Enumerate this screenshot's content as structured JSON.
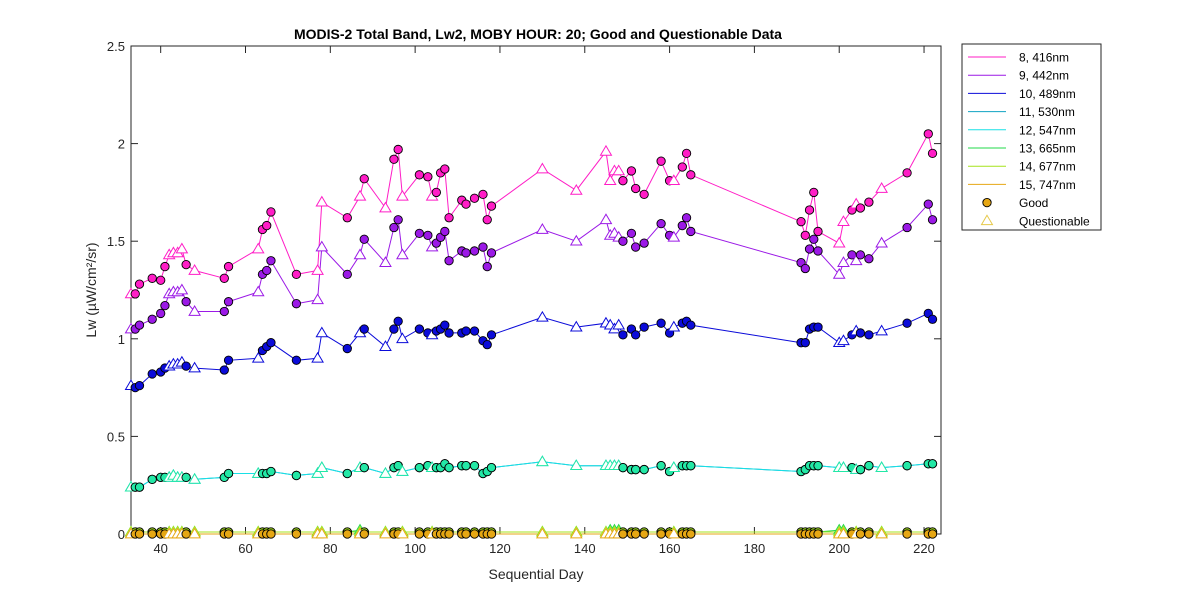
{
  "chart_data": {
    "type": "line",
    "title": "MODIS-2 Total Band,  Lw2, MOBY HOUR: 20;  Good and Questionable Data",
    "xlabel": "Sequential Day",
    "ylabel": "Lw (µW/cm²/sr)",
    "xlim": [
      33,
      224
    ],
    "ylim": [
      0,
      2.5
    ],
    "xticks": [
      40,
      60,
      80,
      100,
      120,
      140,
      160,
      180,
      200,
      220
    ],
    "yticks": [
      0,
      0.5,
      1,
      1.5,
      2,
      2.5
    ],
    "xtick_labels": [
      "40",
      "60",
      "80",
      "100",
      "120",
      "140",
      "160",
      "180",
      "200",
      "220"
    ],
    "ytick_labels": [
      "0",
      "0.5",
      "1",
      "1.5",
      "2",
      "2.5"
    ],
    "x": [
      33,
      34,
      35,
      38,
      40,
      41,
      42,
      43,
      44,
      45,
      46,
      48,
      55,
      56,
      63,
      64,
      65,
      66,
      72,
      77,
      78,
      84,
      87,
      88,
      93,
      95,
      96,
      97,
      101,
      103,
      104,
      105,
      106,
      107,
      108,
      111,
      112,
      114,
      116,
      117,
      118,
      130,
      138,
      145,
      146,
      147,
      148,
      149,
      151,
      152,
      154,
      158,
      160,
      161,
      163,
      164,
      165,
      191,
      192,
      193,
      194,
      195,
      200,
      201,
      203,
      204,
      205,
      207,
      210,
      216,
      221,
      222
    ],
    "good": [
      false,
      true,
      true,
      true,
      true,
      true,
      false,
      false,
      false,
      false,
      true,
      false,
      true,
      true,
      false,
      true,
      true,
      true,
      true,
      false,
      false,
      true,
      false,
      true,
      false,
      true,
      true,
      false,
      true,
      true,
      false,
      true,
      true,
      true,
      true,
      true,
      true,
      true,
      true,
      true,
      true,
      false,
      false,
      false,
      false,
      false,
      false,
      true,
      true,
      true,
      true,
      true,
      true,
      false,
      true,
      true,
      true,
      true,
      true,
      true,
      true,
      true,
      false,
      false,
      true,
      false,
      true,
      true,
      false,
      true,
      true,
      true
    ],
    "series": [
      {
        "name": "8, 416nm",
        "color": "#ff1dc6",
        "values": [
          1.23,
          1.23,
          1.28,
          1.31,
          1.3,
          1.37,
          1.43,
          1.44,
          1.44,
          1.46,
          1.38,
          1.35,
          1.31,
          1.37,
          1.46,
          1.56,
          1.58,
          1.65,
          1.33,
          1.35,
          1.7,
          1.62,
          1.73,
          1.82,
          1.67,
          1.92,
          1.97,
          1.73,
          1.84,
          1.83,
          1.73,
          1.75,
          1.85,
          1.87,
          1.62,
          1.71,
          1.69,
          1.72,
          1.74,
          1.61,
          1.68,
          1.87,
          1.76,
          1.96,
          1.81,
          1.86,
          1.86,
          1.81,
          1.86,
          1.77,
          1.74,
          1.91,
          1.81,
          1.81,
          1.88,
          1.95,
          1.84,
          1.6,
          1.53,
          1.66,
          1.75,
          1.55,
          1.49,
          1.6,
          1.66,
          1.69,
          1.67,
          1.7,
          1.77,
          1.85,
          2.05,
          1.95
        ]
      },
      {
        "name": "9, 442nm",
        "color": "#9b19e6",
        "values": [
          1.05,
          1.05,
          1.07,
          1.1,
          1.13,
          1.17,
          1.23,
          1.24,
          1.24,
          1.25,
          1.19,
          1.14,
          1.14,
          1.19,
          1.24,
          1.33,
          1.35,
          1.4,
          1.18,
          1.2,
          1.47,
          1.33,
          1.43,
          1.51,
          1.39,
          1.57,
          1.61,
          1.43,
          1.54,
          1.53,
          1.47,
          1.49,
          1.52,
          1.55,
          1.4,
          1.45,
          1.44,
          1.45,
          1.47,
          1.37,
          1.44,
          1.56,
          1.5,
          1.61,
          1.53,
          1.54,
          1.52,
          1.5,
          1.54,
          1.47,
          1.49,
          1.59,
          1.53,
          1.52,
          1.58,
          1.62,
          1.55,
          1.39,
          1.36,
          1.46,
          1.51,
          1.45,
          1.33,
          1.39,
          1.43,
          1.4,
          1.43,
          1.41,
          1.49,
          1.57,
          1.69,
          1.61
        ]
      },
      {
        "name": "10, 489nm",
        "color": "#0b0bd9",
        "values": [
          0.76,
          0.75,
          0.76,
          0.82,
          0.83,
          0.85,
          0.86,
          0.87,
          0.87,
          0.88,
          0.86,
          0.85,
          0.84,
          0.89,
          0.9,
          0.94,
          0.96,
          0.98,
          0.89,
          0.9,
          1.03,
          0.95,
          1.03,
          1.05,
          0.96,
          1.05,
          1.09,
          1.0,
          1.05,
          1.03,
          1.02,
          1.04,
          1.05,
          1.07,
          1.03,
          1.03,
          1.04,
          1.04,
          0.99,
          0.97,
          1.02,
          1.11,
          1.06,
          1.08,
          1.07,
          1.05,
          1.07,
          1.02,
          1.05,
          1.02,
          1.06,
          1.08,
          1.03,
          1.06,
          1.08,
          1.09,
          1.07,
          0.98,
          0.98,
          1.05,
          1.06,
          1.06,
          0.98,
          0.99,
          1.02,
          1.04,
          1.03,
          1.02,
          1.04,
          1.08,
          1.13,
          1.1
        ]
      },
      {
        "name": "11, 530nm",
        "color": "#0fa3c3",
        "values": [
          0.24,
          0.24,
          0.24,
          0.28,
          0.29,
          0.29,
          0.29,
          0.3,
          0.29,
          0.29,
          0.29,
          0.28,
          0.29,
          0.31,
          0.31,
          0.31,
          0.31,
          0.32,
          0.3,
          0.31,
          0.34,
          0.31,
          0.34,
          0.34,
          0.31,
          0.34,
          0.35,
          0.32,
          0.34,
          0.35,
          0.34,
          0.34,
          0.34,
          0.36,
          0.34,
          0.35,
          0.35,
          0.35,
          0.31,
          0.32,
          0.34,
          0.37,
          0.35,
          0.35,
          0.35,
          0.35,
          0.35,
          0.34,
          0.33,
          0.33,
          0.33,
          0.35,
          0.32,
          0.34,
          0.35,
          0.35,
          0.35,
          0.32,
          0.33,
          0.35,
          0.35,
          0.35,
          0.34,
          0.34,
          0.34,
          0.33,
          0.33,
          0.35,
          0.34,
          0.35,
          0.36,
          0.36
        ]
      },
      {
        "name": "12, 547nm",
        "color": "#18e0e6",
        "values": [
          0.24,
          0.24,
          0.24,
          0.28,
          0.29,
          0.29,
          0.29,
          0.3,
          0.29,
          0.29,
          0.29,
          0.28,
          0.29,
          0.31,
          0.31,
          0.31,
          0.31,
          0.32,
          0.3,
          0.31,
          0.34,
          0.31,
          0.34,
          0.34,
          0.31,
          0.34,
          0.35,
          0.32,
          0.34,
          0.35,
          0.34,
          0.34,
          0.34,
          0.36,
          0.34,
          0.35,
          0.35,
          0.35,
          0.31,
          0.32,
          0.34,
          0.37,
          0.35,
          0.35,
          0.35,
          0.35,
          0.35,
          0.34,
          0.33,
          0.33,
          0.33,
          0.35,
          0.32,
          0.34,
          0.35,
          0.35,
          0.35,
          0.32,
          0.33,
          0.35,
          0.35,
          0.35,
          0.34,
          0.34,
          0.34,
          0.33,
          0.33,
          0.35,
          0.34,
          0.35,
          0.36,
          0.36
        ]
      },
      {
        "name": "13, 665nm",
        "color": "#22d84a",
        "values": [
          0.01,
          0.01,
          0.01,
          0.01,
          0.01,
          0.01,
          0.01,
          0.01,
          0.01,
          0.01,
          0.01,
          0.01,
          0.01,
          0.01,
          0.01,
          0.01,
          0.01,
          0.01,
          0.01,
          0.01,
          0.01,
          0.01,
          0.02,
          0.01,
          0.01,
          0.01,
          0.01,
          0.01,
          0.01,
          0.01,
          0.01,
          0.01,
          0.01,
          0.01,
          0.01,
          0.01,
          0.01,
          0.01,
          0.01,
          0.01,
          0.01,
          0.01,
          0.01,
          0.01,
          0.02,
          0.02,
          0.02,
          0.01,
          0.01,
          0.01,
          0.01,
          0.01,
          0.01,
          0.01,
          0.01,
          0.01,
          0.01,
          0.01,
          0.01,
          0.01,
          0.01,
          0.01,
          0.02,
          0.02,
          0.01,
          0.01,
          0.01,
          0.01,
          0.01,
          0.01,
          0.01,
          0.01
        ]
      },
      {
        "name": "14, 677nm",
        "color": "#a6e31c",
        "values": [
          0.01,
          0.01,
          0.01,
          0.01,
          0.01,
          0.01,
          0.01,
          0.01,
          0.01,
          0.01,
          0.01,
          0.01,
          0.01,
          0.01,
          0.01,
          0.01,
          0.01,
          0.01,
          0.01,
          0.01,
          0.01,
          0.01,
          0.01,
          0.01,
          0.01,
          0.01,
          0.01,
          0.01,
          0.01,
          0.01,
          0.01,
          0.01,
          0.01,
          0.01,
          0.01,
          0.01,
          0.01,
          0.01,
          0.01,
          0.01,
          0.01,
          0.01,
          0.01,
          0.01,
          0.01,
          0.01,
          0.01,
          0.01,
          0.01,
          0.01,
          0.01,
          0.01,
          0.01,
          0.01,
          0.01,
          0.01,
          0.01,
          0.01,
          0.01,
          0.01,
          0.01,
          0.01,
          0.01,
          0.01,
          0.01,
          0.01,
          0.01,
          0.01,
          0.01,
          0.01,
          0.01,
          0.01
        ]
      },
      {
        "name": "15, 747nm",
        "color": "#e6a714",
        "values": [
          0.0,
          0.0,
          0.0,
          0.0,
          0.0,
          0.0,
          0.0,
          0.0,
          0.0,
          0.0,
          0.0,
          0.0,
          0.0,
          0.0,
          0.0,
          0.0,
          0.0,
          0.0,
          0.0,
          0.0,
          0.0,
          0.0,
          0.0,
          0.0,
          0.0,
          0.0,
          0.0,
          0.0,
          0.0,
          0.0,
          0.0,
          0.0,
          0.0,
          0.0,
          0.0,
          0.0,
          0.0,
          0.0,
          0.0,
          0.0,
          0.0,
          0.0,
          0.0,
          0.0,
          0.0,
          0.0,
          0.0,
          0.0,
          0.0,
          0.0,
          0.0,
          0.0,
          0.0,
          0.0,
          0.0,
          0.0,
          0.0,
          0.0,
          0.0,
          0.0,
          0.0,
          0.0,
          0.0,
          0.0,
          0.0,
          0.0,
          0.0,
          0.0,
          0.0,
          0.0,
          0.0,
          0.0
        ]
      }
    ],
    "series_alt_colors": {
      "11, 530nm": "#19b6ea",
      "12, 547nm": "#23e8a6"
    },
    "legend_position": "outside-top-right",
    "legend_markers": [
      {
        "label": "Good",
        "marker": "circle",
        "color": "#e6a714"
      },
      {
        "label": "Questionable",
        "marker": "triangle",
        "color": "#e6c94a"
      }
    ]
  }
}
